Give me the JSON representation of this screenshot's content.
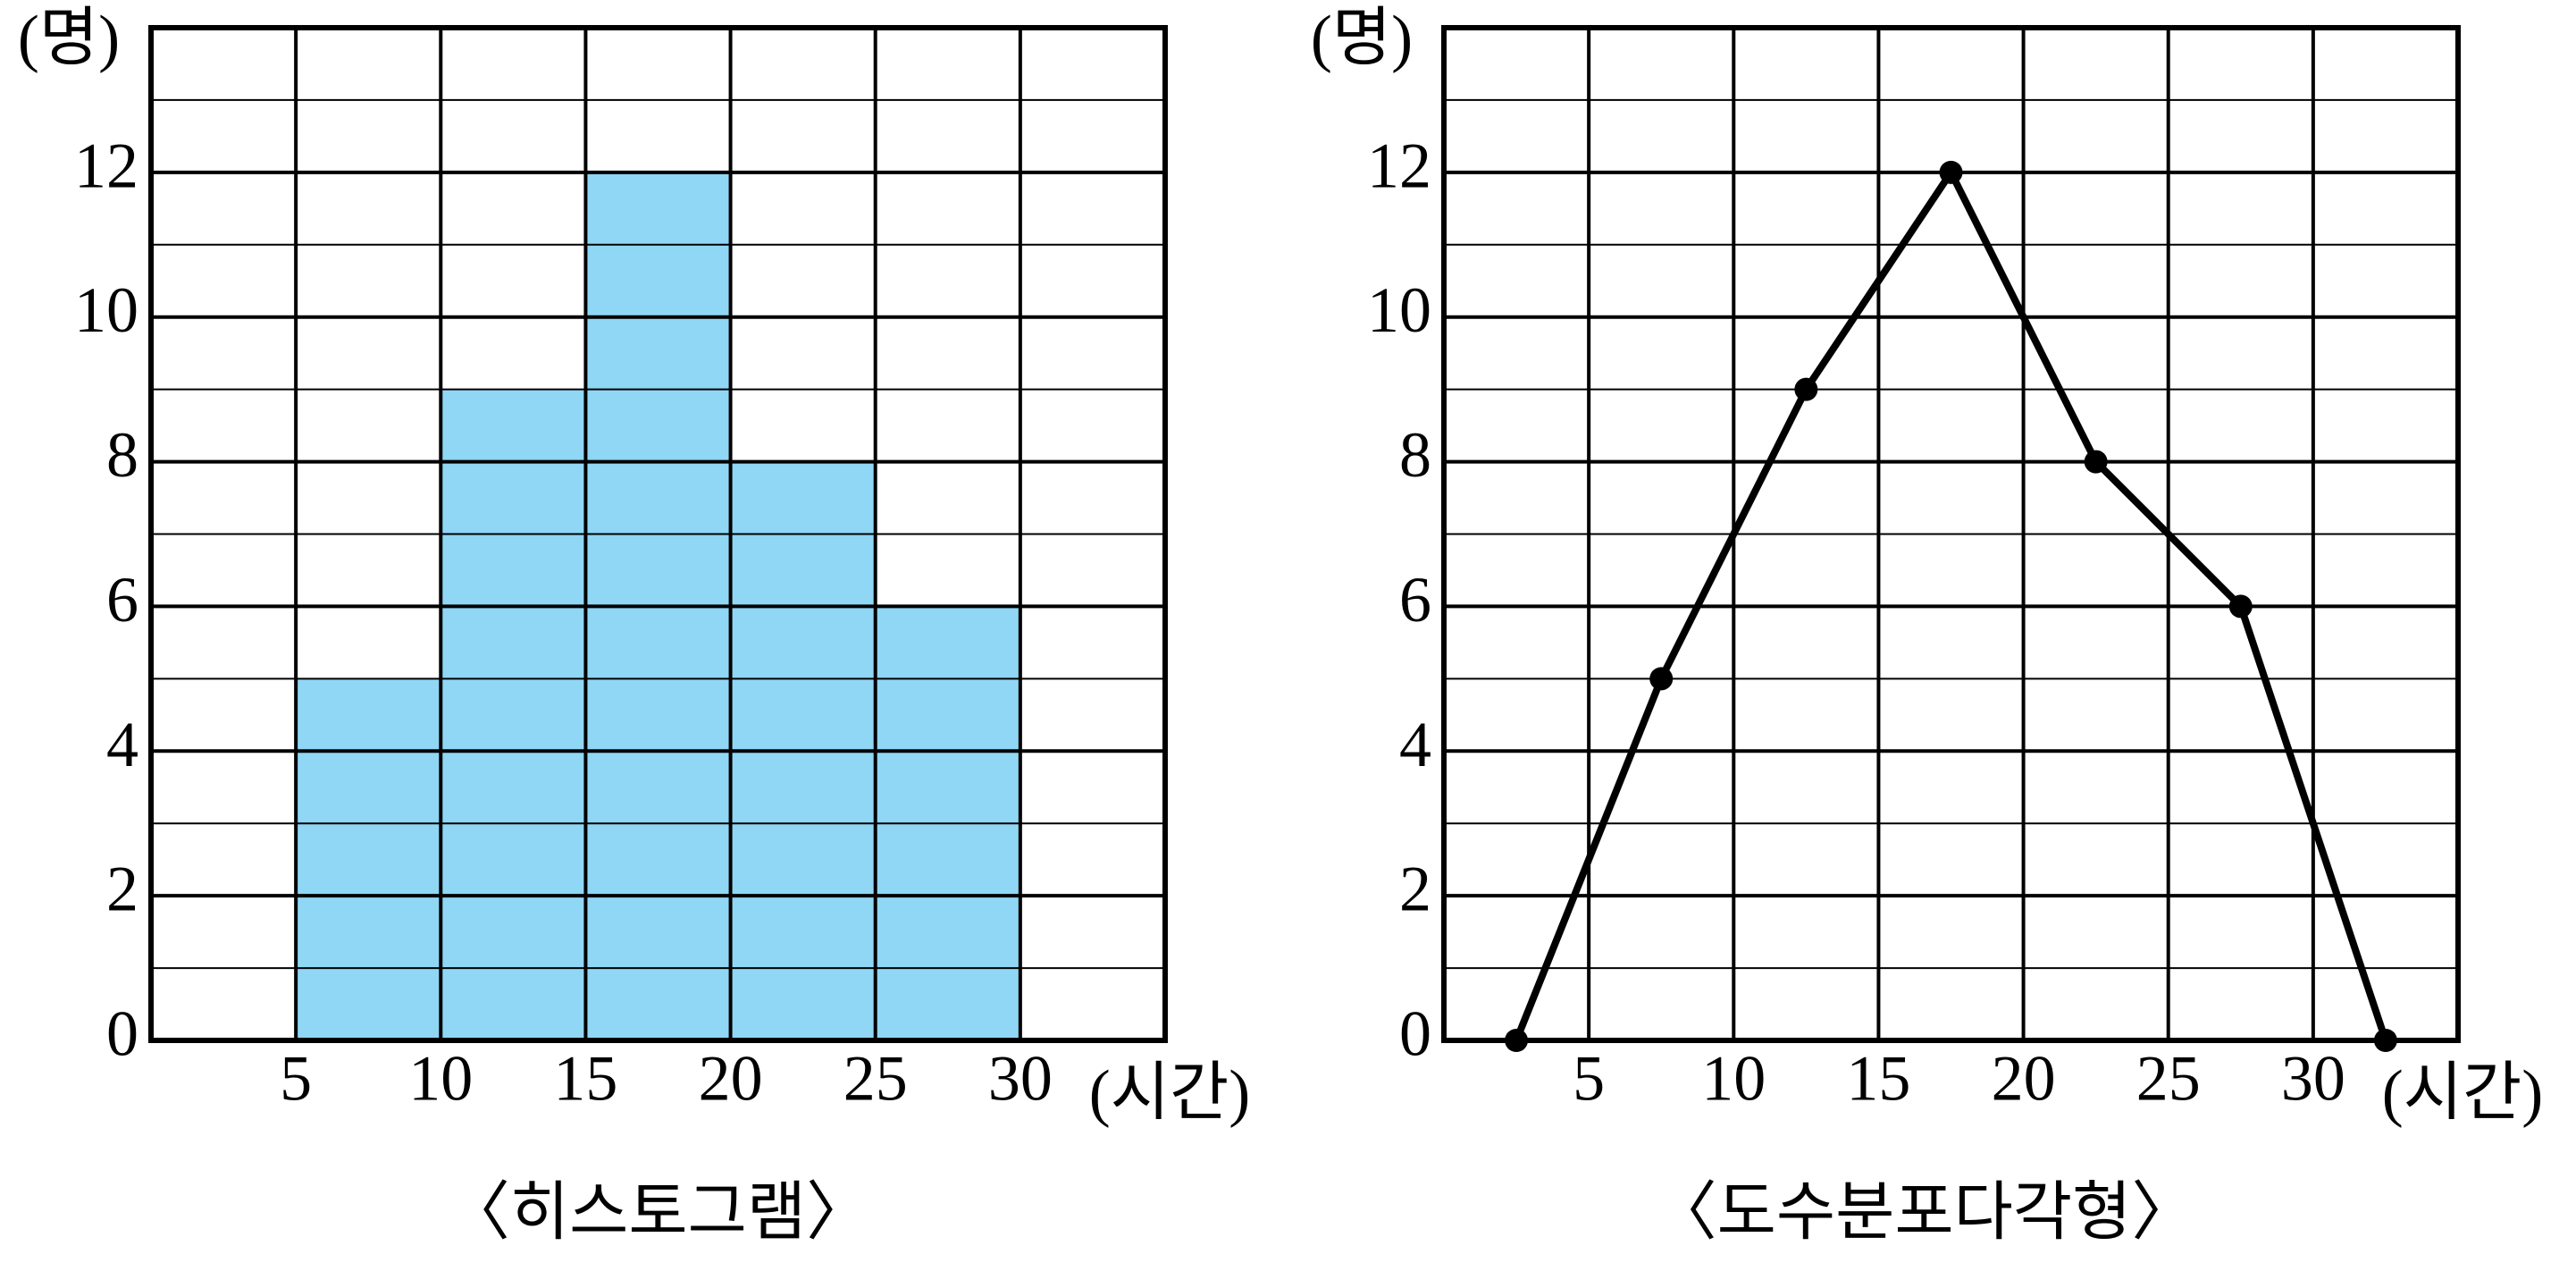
{
  "chart_data": [
    {
      "type": "histogram",
      "title": "〈히스토그램〉",
      "y_label": "(명)",
      "x_label": "(시간)",
      "bins": [
        5,
        10,
        15,
        20,
        25,
        30
      ],
      "values": [
        5,
        9,
        12,
        8,
        6
      ],
      "color": "#8fd7f5",
      "xlim": [
        0,
        35
      ],
      "xticks": [
        5,
        10,
        15,
        20,
        25,
        30
      ],
      "ylim": [
        0,
        14
      ],
      "yticks": [
        0,
        2,
        4,
        6,
        8,
        10,
        12
      ],
      "grid": true
    },
    {
      "type": "line",
      "title": "〈도수분포다각형〉",
      "y_label": "(명)",
      "x_label": "(시간)",
      "x": [
        2.5,
        7.5,
        12.5,
        17.5,
        22.5,
        27.5,
        32.5
      ],
      "values": [
        0,
        5,
        9,
        12,
        8,
        6,
        0
      ],
      "color": "#000000",
      "xlim": [
        0,
        35
      ],
      "xticks": [
        5,
        10,
        15,
        20,
        25,
        30
      ],
      "ylim": [
        0,
        14
      ],
      "yticks": [
        0,
        2,
        4,
        6,
        8,
        10,
        12
      ],
      "grid": true
    }
  ]
}
